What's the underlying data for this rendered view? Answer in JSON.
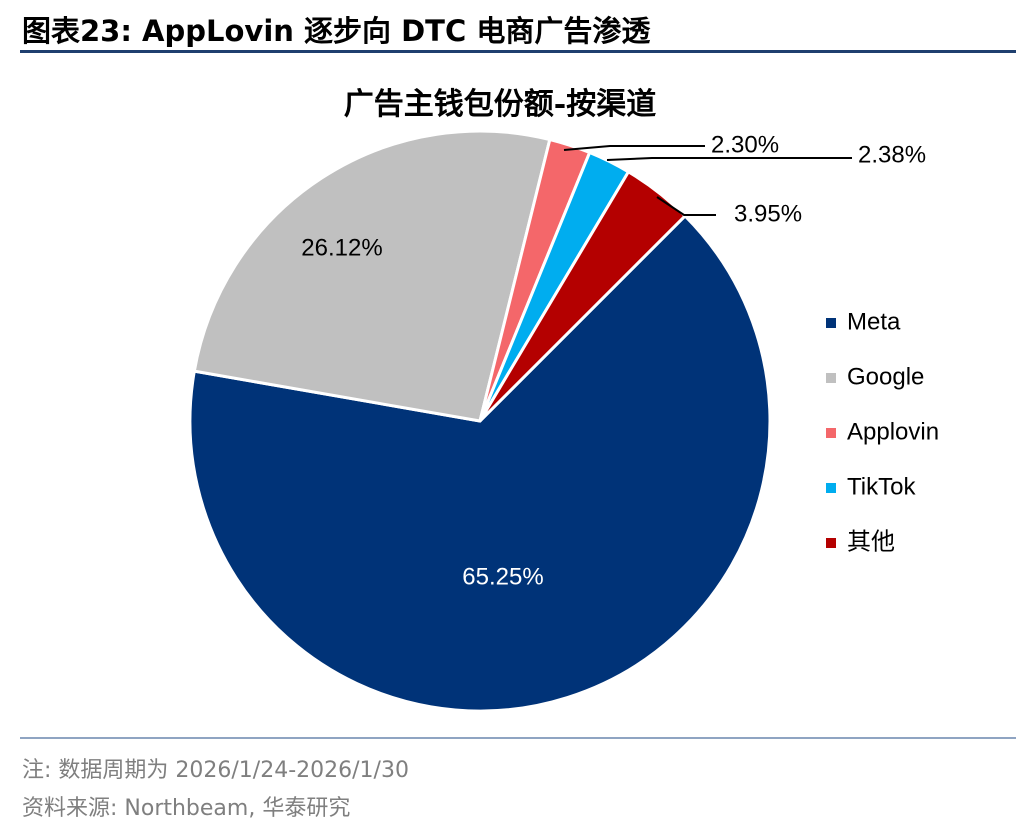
{
  "figure": {
    "title": "图表23:  AppLovin 逐步向 DTC 电商广告渗透",
    "note": "注:  数据周期为 2026/1/24-2026/1/30",
    "source": "资料来源:  Northbeam,  华泰研究"
  },
  "chart_data": {
    "type": "pie",
    "title": "广告主钱包份额-按渠道",
    "start_angle_deg": 45,
    "direction": "clockwise",
    "legend_position": "right",
    "slices": [
      {
        "name": "Meta",
        "value": 65.25,
        "label": "65.25%",
        "color": "#003378",
        "label_color": "#ffffff",
        "leader": false
      },
      {
        "name": "Google",
        "value": 26.12,
        "label": "26.12%",
        "color": "#c0c0c0",
        "label_color": "#000000",
        "leader": false
      },
      {
        "name": "Applovin",
        "value": 2.3,
        "label": "2.30%",
        "color": "#f4676a",
        "label_color": "#000000",
        "leader": true
      },
      {
        "name": "TikTok",
        "value": 2.38,
        "label": "2.38%",
        "color": "#00adef",
        "label_color": "#000000",
        "leader": true
      },
      {
        "name": "其他",
        "value": 3.95,
        "label": "3.95%",
        "color": "#b40000",
        "label_color": "#000000",
        "leader": true
      }
    ]
  }
}
